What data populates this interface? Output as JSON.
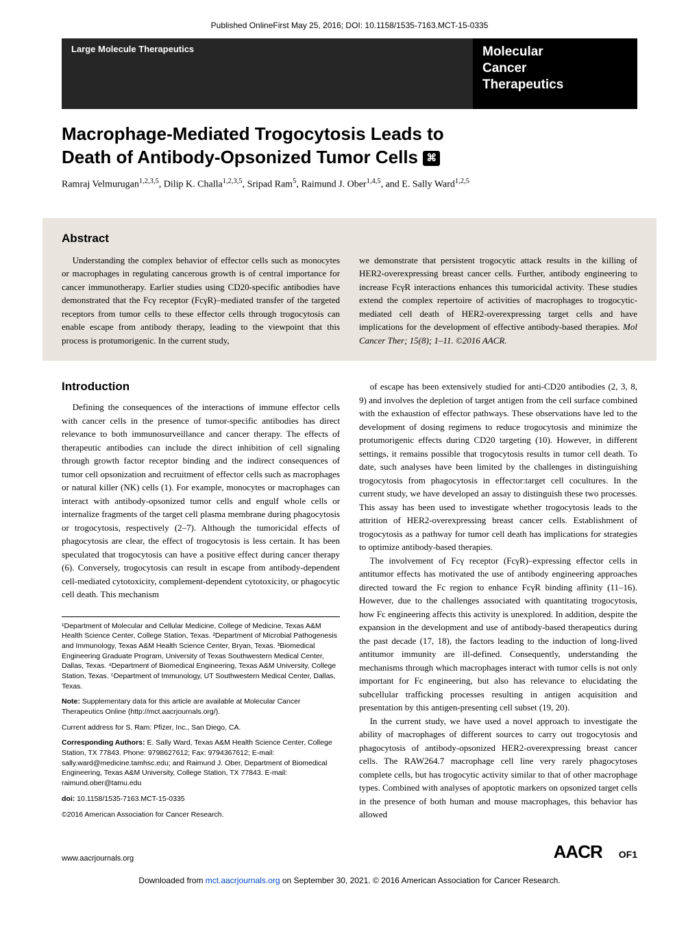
{
  "onlineFirst": "Published OnlineFirst May 25, 2016; DOI: 10.1158/1535-7163.MCT-15-0335",
  "header": {
    "category": "Large Molecule Therapeutics",
    "journalLine1": "Molecular",
    "journalLine2": "Cancer",
    "journalLine3": "Therapeutics"
  },
  "title": "Macrophage-Mediated Trogocytosis Leads to Death of Antibody-Opsonized Tumor Cells",
  "suppIconGlyph": "⌘",
  "authors": {
    "a1": "Ramraj Velmurugan",
    "a1sup": "1,2,3,5",
    "a2": ", Dilip K. Challa",
    "a2sup": "1,2,3,5",
    "a3": ", Sripad Ram",
    "a3sup": "5",
    "a4": ", Raimund J. Ober",
    "a4sup": "1,4,5",
    "a5": ", and E. Sally Ward",
    "a5sup": "1,2,5"
  },
  "abstract": {
    "heading": "Abstract",
    "left": "Understanding the complex behavior of effector cells such as monocytes or macrophages in regulating cancerous growth is of central importance for cancer immunotherapy. Earlier studies using CD20-specific antibodies have demonstrated that the Fcγ receptor (FcγR)–mediated transfer of the targeted receptors from tumor cells to these effector cells through trogocytosis can enable escape from antibody therapy, leading to the viewpoint that this process is protumorigenic. In the current study,",
    "right": "we demonstrate that persistent trogocytic attack results in the killing of HER2-overexpressing breast cancer cells. Further, antibody engineering to increase FcγR interactions enhances this tumoricidal activity. These studies extend the complex repertoire of activities of macrophages to trogocytic-mediated cell death of HER2-overexpressing target cells and have implications for the development of effective antibody-based therapies. ",
    "citation": "Mol Cancer Ther; 15(8); 1–11. ©2016 AACR."
  },
  "introduction": {
    "heading": "Introduction",
    "p1": "Defining the consequences of the interactions of immune effector cells with cancer cells in the presence of tumor-specific antibodies has direct relevance to both immunosurveillance and cancer therapy. The effects of therapeutic antibodies can include the direct inhibition of cell signaling through growth factor receptor binding and the indirect consequences of tumor cell opsonization and recruitment of effector cells such as macrophages or natural killer (NK) cells (1). For example, monocytes or macrophages can interact with antibody-opsonized tumor cells and engulf whole cells or internalize fragments of the target cell plasma membrane during phagocytosis or trogocytosis, respectively (2–7). Although the tumoricidal effects of phagocytosis are clear, the effect of trogocytosis is less certain. It has been speculated that trogocytosis can have a positive effect during cancer therapy (6). Conversely, trogocytosis can result in escape from antibody-dependent cell-mediated cytotoxicity, complement-dependent cytotoxicity, or phagocytic cell death. This mechanism"
  },
  "rightCol": {
    "p1": "of escape has been extensively studied for anti-CD20 antibodies (2, 3, 8, 9) and involves the depletion of target antigen from the cell surface combined with the exhaustion of effector pathways. These observations have led to the development of dosing regimens to reduce trogocytosis and minimize the protumorigenic effects during CD20 targeting (10). However, in different settings, it remains possible that trogocytosis results in tumor cell death. To date, such analyses have been limited by the challenges in distinguishing trogocytosis from phagocytosis in effector:target cell cocultures. In the current study, we have developed an assay to distinguish these two processes. This assay has been used to investigate whether trogocytosis leads to the attrition of HER2-overexpressing breast cancer cells. Establishment of trogocytosis as a pathway for tumor cell death has implications for strategies to optimize antibody-based therapies.",
    "p2": "The involvement of Fcγ receptor (FcγR)–expressing effector cells in antitumor effects has motivated the use of antibody engineering approaches directed toward the Fc region to enhance FcγR binding affinity (11–16). However, due to the challenges associated with quantitating trogocytosis, how Fc engineering affects this activity is unexplored. In addition, despite the expansion in the development and use of antibody-based therapeutics during the past decade (17, 18), the factors leading to the induction of long-lived antitumor immunity are ill-defined. Consequently, understanding the mechanisms through which macrophages interact with tumor cells is not only important for Fc engineering, but also has relevance to elucidating the subcellular trafficking processes resulting in antigen acquisition and presentation by this antigen-presenting cell subset (19, 20).",
    "p3": "In the current study, we have used a novel approach to investigate the ability of macrophages of different sources to carry out trogocytosis and phagocytosis of antibody-opsonized HER2-overexpressing breast cancer cells. The RAW264.7 macrophage cell line very rarely phagocytoses complete cells, but has trogocytic activity similar to that of other macrophage types. Combined with analyses of apoptotic markers on opsonized target cells in the presence of both human and mouse macrophages, this behavior has allowed"
  },
  "footnotes": {
    "affiliations": "¹Department of Molecular and Cellular Medicine, College of Medicine, Texas A&M Health Science Center, College Station, Texas. ²Department of Microbial Pathogenesis and Immunology, Texas A&M Health Science Center, Bryan, Texas. ³Biomedical Engineering Graduate Program, University of Texas Southwestern Medical Center, Dallas, Texas. ⁴Department of Biomedical Engineering, Texas A&M University, College Station, Texas. ⁵Department of Immunology, UT Southwestern Medical Center, Dallas, Texas.",
    "noteLabel": "Note:",
    "note": " Supplementary data for this article are available at Molecular Cancer Therapeutics Online (http://mct.aacrjournals.org/).",
    "currentAddr": "Current address for S. Ram: Pfizer, Inc., San Diego, CA.",
    "corrLabel": "Corresponding Authors:",
    "corr": " E. Sally Ward, Texas A&M Health Science Center, College Station, TX 77843. Phone: 9798627612; Fax: 9794367612; E-mail: sally.ward@medicine.tamhsc.edu; and Raimund J. Ober, Department of Biomedical Engineering, Texas A&M University, College Station, TX 77843. E-mail: raimund.ober@tamu.edu",
    "doiLabel": "doi:",
    "doi": " 10.1158/1535-7163.MCT-15-0335",
    "copyright": "©2016 American Association for Cancer Research."
  },
  "footer": {
    "url": "www.aacrjournals.org",
    "logo": "AACR",
    "pageNum": "OF1"
  },
  "download": {
    "pre": "Downloaded from ",
    "link": "mct.aacrjournals.org",
    "post": " on September 30, 2021. © 2016 American Association for Cancer Research."
  }
}
